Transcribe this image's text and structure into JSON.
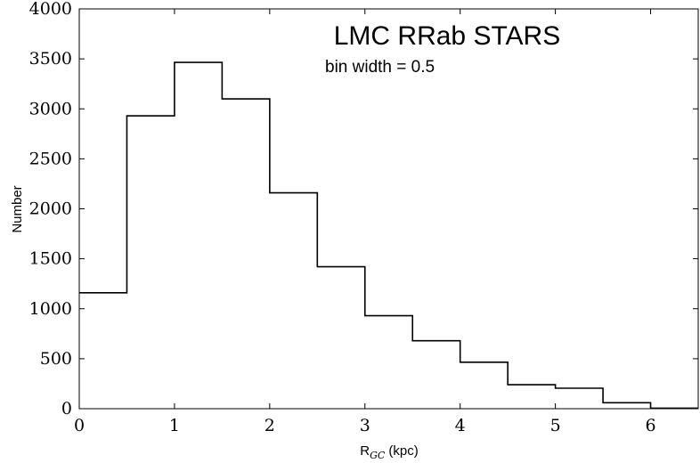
{
  "chart_data": {
    "type": "bar",
    "title": "LMC RRab STARS",
    "subtitle": "bin width = 0.5",
    "xlabel": "R",
    "xlabel_subscript": "GC",
    "xlabel_suffix": "(kpc)",
    "ylabel": "Number",
    "xlim": [
      0,
      6.5
    ],
    "ylim": [
      0,
      4000
    ],
    "bin_edges": [
      0,
      0.5,
      1.0,
      1.5,
      2.0,
      2.5,
      3.0,
      3.5,
      4.0,
      4.5,
      5.0,
      5.5,
      6.0,
      6.5
    ],
    "values": [
      1160,
      2930,
      3465,
      3100,
      2160,
      1420,
      930,
      680,
      465,
      240,
      205,
      60,
      5
    ],
    "xticks": [
      "0",
      "1",
      "2",
      "3",
      "4",
      "5",
      "6"
    ],
    "yticks": [
      "0",
      "500",
      "1000",
      "1500",
      "2000",
      "2500",
      "3000",
      "3500",
      "4000"
    ],
    "style": "step",
    "grid": false,
    "line_color": "#000000"
  }
}
